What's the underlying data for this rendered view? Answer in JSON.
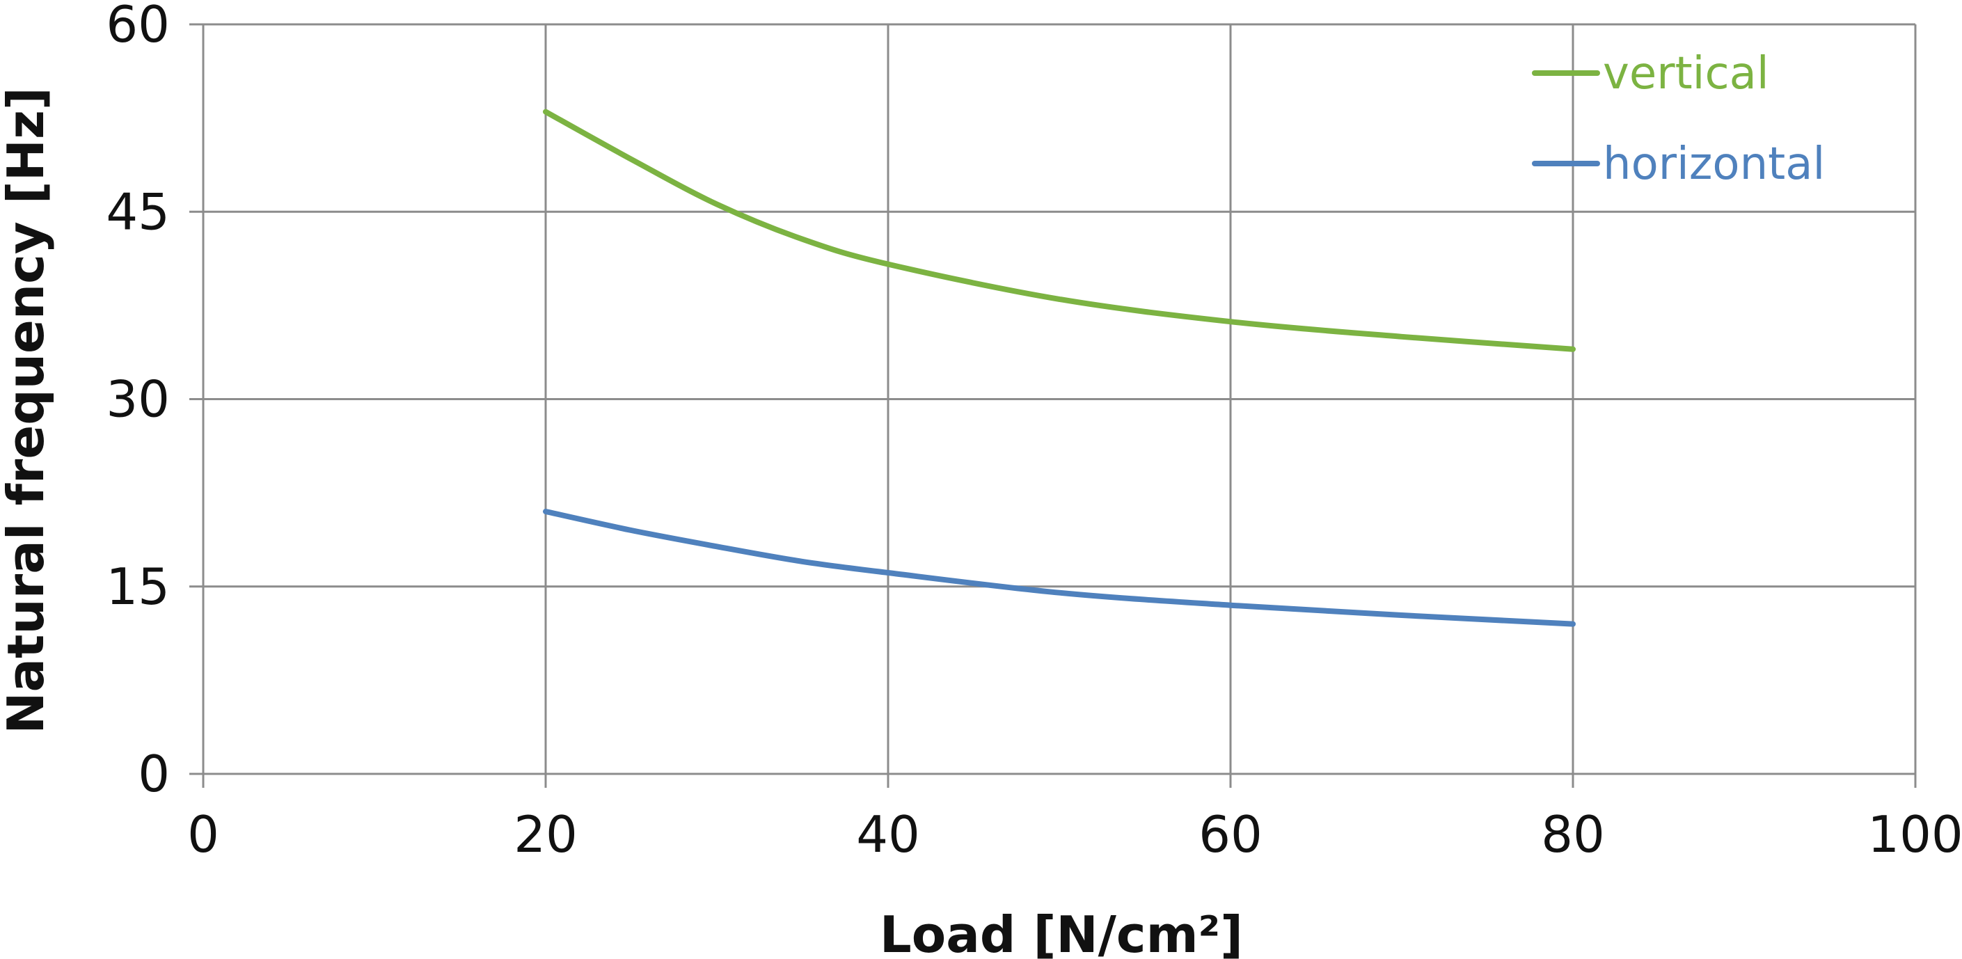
{
  "chart_data": {
    "type": "line",
    "title": "",
    "xlabel": "Load [N/cm²]",
    "ylabel": "Natural frequency [Hz]",
    "xlim": [
      0,
      100
    ],
    "ylim": [
      0,
      60
    ],
    "xticks": [
      0,
      20,
      40,
      60,
      80,
      100
    ],
    "yticks": [
      0,
      15,
      30,
      45,
      60
    ],
    "grid": true,
    "legend_position": "top-right",
    "series": [
      {
        "name": "vertical",
        "color": "#7cb342",
        "x": [
          20,
          25,
          30,
          35,
          40,
          50,
          60,
          70,
          80
        ],
        "y": [
          53,
          49.2,
          45.6,
          42.8,
          40.8,
          38.0,
          36.2,
          35.0,
          34.0
        ]
      },
      {
        "name": "horizontal",
        "color": "#4f81bd",
        "x": [
          20,
          25,
          30,
          35,
          40,
          50,
          60,
          70,
          80
        ],
        "y": [
          21,
          19.5,
          18.2,
          17.0,
          16.1,
          14.5,
          13.5,
          12.7,
          12.0
        ]
      }
    ]
  }
}
